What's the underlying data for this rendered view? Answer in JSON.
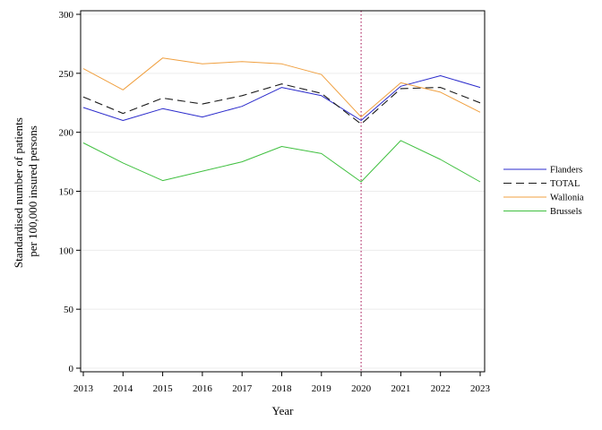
{
  "chart_data": {
    "type": "line",
    "xlabel": "Year",
    "ylabel_lines": [
      "Standardised number of patients",
      "per 100,000 insured persons"
    ],
    "x": [
      2013,
      2014,
      2015,
      2016,
      2017,
      2018,
      2019,
      2020,
      2021,
      2022,
      2023
    ],
    "x_tick_labels": [
      "2013",
      "2014",
      "2015",
      "2016",
      "2017",
      "2018",
      "2019",
      "2020",
      "2021",
      "2022",
      "2023"
    ],
    "ylim": [
      0,
      300
    ],
    "y_ticks": [
      0,
      50,
      100,
      150,
      200,
      250,
      300
    ],
    "y_tick_labels": [
      "0",
      "50",
      "100",
      "150",
      "200",
      "250",
      "300"
    ],
    "grid": "horizontal",
    "reference_line_x": 2020,
    "reference_line_color": "#b0306a",
    "legend_position": "right",
    "series": [
      {
        "name": "Flanders",
        "color": "#2b2bcc",
        "dash": "solid",
        "values": [
          221,
          210,
          220,
          213,
          222,
          238,
          231,
          210,
          239,
          248,
          238
        ]
      },
      {
        "name": "TOTAL",
        "color": "#1a1a1a",
        "dash": "dashed",
        "values": [
          230,
          216,
          229,
          224,
          231,
          241,
          233,
          207,
          237,
          238,
          225
        ]
      },
      {
        "name": "Wallonia",
        "color": "#f0a040",
        "dash": "solid",
        "values": [
          254,
          236,
          263,
          258,
          260,
          258,
          249,
          213,
          242,
          234,
          217
        ]
      },
      {
        "name": "Brussels",
        "color": "#40c040",
        "dash": "solid",
        "values": [
          191,
          174,
          159,
          167,
          175,
          188,
          182,
          158,
          193,
          177,
          158
        ]
      }
    ]
  }
}
